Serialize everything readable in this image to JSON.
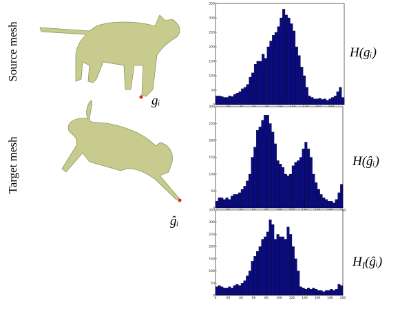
{
  "figure": {
    "row_labels": [
      "Source mesh",
      "Target mesh"
    ],
    "point_labels": [
      "gᵢ",
      "ĝᵢ"
    ],
    "histogram_labels": [
      {
        "symbol": "H",
        "argument": "(gᵢ)"
      },
      {
        "symbol": "H",
        "argument": "(ĝᵢ)"
      },
      {
        "symbol": "H",
        "subscript": "I",
        "argument": "(ĝᵢ)"
      }
    ]
  },
  "chart_data": [
    {
      "type": "histogram",
      "color": "#0b0b82",
      "bins": [
        0,
        4,
        8,
        12,
        16,
        20,
        24,
        28,
        32,
        36,
        40,
        44,
        48,
        52,
        56,
        60,
        64,
        68,
        72,
        76,
        80,
        84,
        88,
        92,
        96,
        100,
        104,
        108,
        112,
        116,
        120,
        124,
        128,
        132,
        136,
        140,
        144,
        148,
        152,
        156,
        160,
        164,
        168,
        172,
        176,
        180,
        184,
        188,
        192,
        196,
        200
      ],
      "values": [
        30,
        30,
        28,
        25,
        25,
        30,
        28,
        35,
        40,
        45,
        55,
        60,
        70,
        95,
        110,
        140,
        150,
        150,
        175,
        160,
        200,
        220,
        240,
        250,
        270,
        300,
        330,
        310,
        300,
        280,
        255,
        200,
        170,
        130,
        100,
        60,
        30,
        25,
        20,
        20,
        22,
        18,
        20,
        15,
        20,
        25,
        30,
        45,
        60,
        25
      ],
      "xlim": [
        0,
        200
      ],
      "ylim": [
        0,
        350
      ],
      "xticks": [
        20,
        40,
        60,
        80,
        100,
        120,
        140,
        160,
        180
      ],
      "yticks": [
        0,
        50,
        100,
        150,
        200,
        250,
        300,
        350
      ]
    },
    {
      "type": "histogram",
      "color": "#0b0b82",
      "bins": [
        0,
        4,
        8,
        12,
        16,
        20,
        24,
        28,
        32,
        36,
        40,
        44,
        48,
        52,
        56,
        60,
        64,
        68,
        72,
        76,
        80,
        84,
        88,
        92,
        96,
        100,
        104,
        108,
        112,
        116,
        120,
        124,
        128,
        132,
        136,
        140,
        144,
        148,
        152,
        156,
        160,
        164,
        168,
        172,
        176,
        180,
        184,
        188,
        192,
        196,
        200
      ],
      "values": [
        20,
        30,
        30,
        25,
        30,
        25,
        35,
        40,
        40,
        45,
        55,
        65,
        80,
        100,
        150,
        180,
        230,
        240,
        260,
        275,
        275,
        250,
        225,
        190,
        140,
        130,
        120,
        100,
        95,
        100,
        125,
        135,
        140,
        150,
        175,
        195,
        175,
        150,
        100,
        75,
        55,
        40,
        30,
        25,
        20,
        20,
        15,
        25,
        45,
        70
      ],
      "xlim": [
        0,
        200
      ],
      "ylim": [
        0,
        300
      ],
      "xticks": [
        20,
        40,
        60,
        80,
        100,
        120,
        140,
        160,
        180,
        200
      ],
      "yticks": [
        0,
        50,
        100,
        150,
        200,
        250,
        300
      ]
    },
    {
      "type": "histogram",
      "color": "#0b0b82",
      "bins": [
        0,
        4,
        8,
        12,
        16,
        20,
        24,
        28,
        32,
        36,
        40,
        44,
        48,
        52,
        56,
        60,
        64,
        68,
        72,
        76,
        80,
        84,
        88,
        92,
        96,
        100,
        104,
        108,
        112,
        116,
        120,
        124,
        128,
        132,
        136,
        140,
        144,
        148,
        152,
        156,
        160,
        164,
        168,
        172,
        176,
        180,
        184,
        188,
        192,
        196,
        200
      ],
      "values": [
        35,
        40,
        35,
        30,
        30,
        35,
        30,
        40,
        45,
        40,
        50,
        60,
        80,
        100,
        140,
        160,
        180,
        200,
        230,
        240,
        260,
        310,
        290,
        230,
        250,
        240,
        240,
        230,
        280,
        250,
        200,
        150,
        100,
        35,
        30,
        25,
        30,
        25,
        30,
        25,
        20,
        20,
        15,
        20,
        20,
        25,
        20,
        25,
        45,
        40
      ],
      "xlim": [
        0,
        200
      ],
      "ylim": [
        0,
        350
      ],
      "xticks": [
        0,
        20,
        40,
        60,
        80,
        100,
        120,
        140,
        160,
        180,
        200
      ],
      "yticks": [
        0,
        50,
        100,
        150,
        200,
        250,
        300,
        350
      ]
    }
  ]
}
